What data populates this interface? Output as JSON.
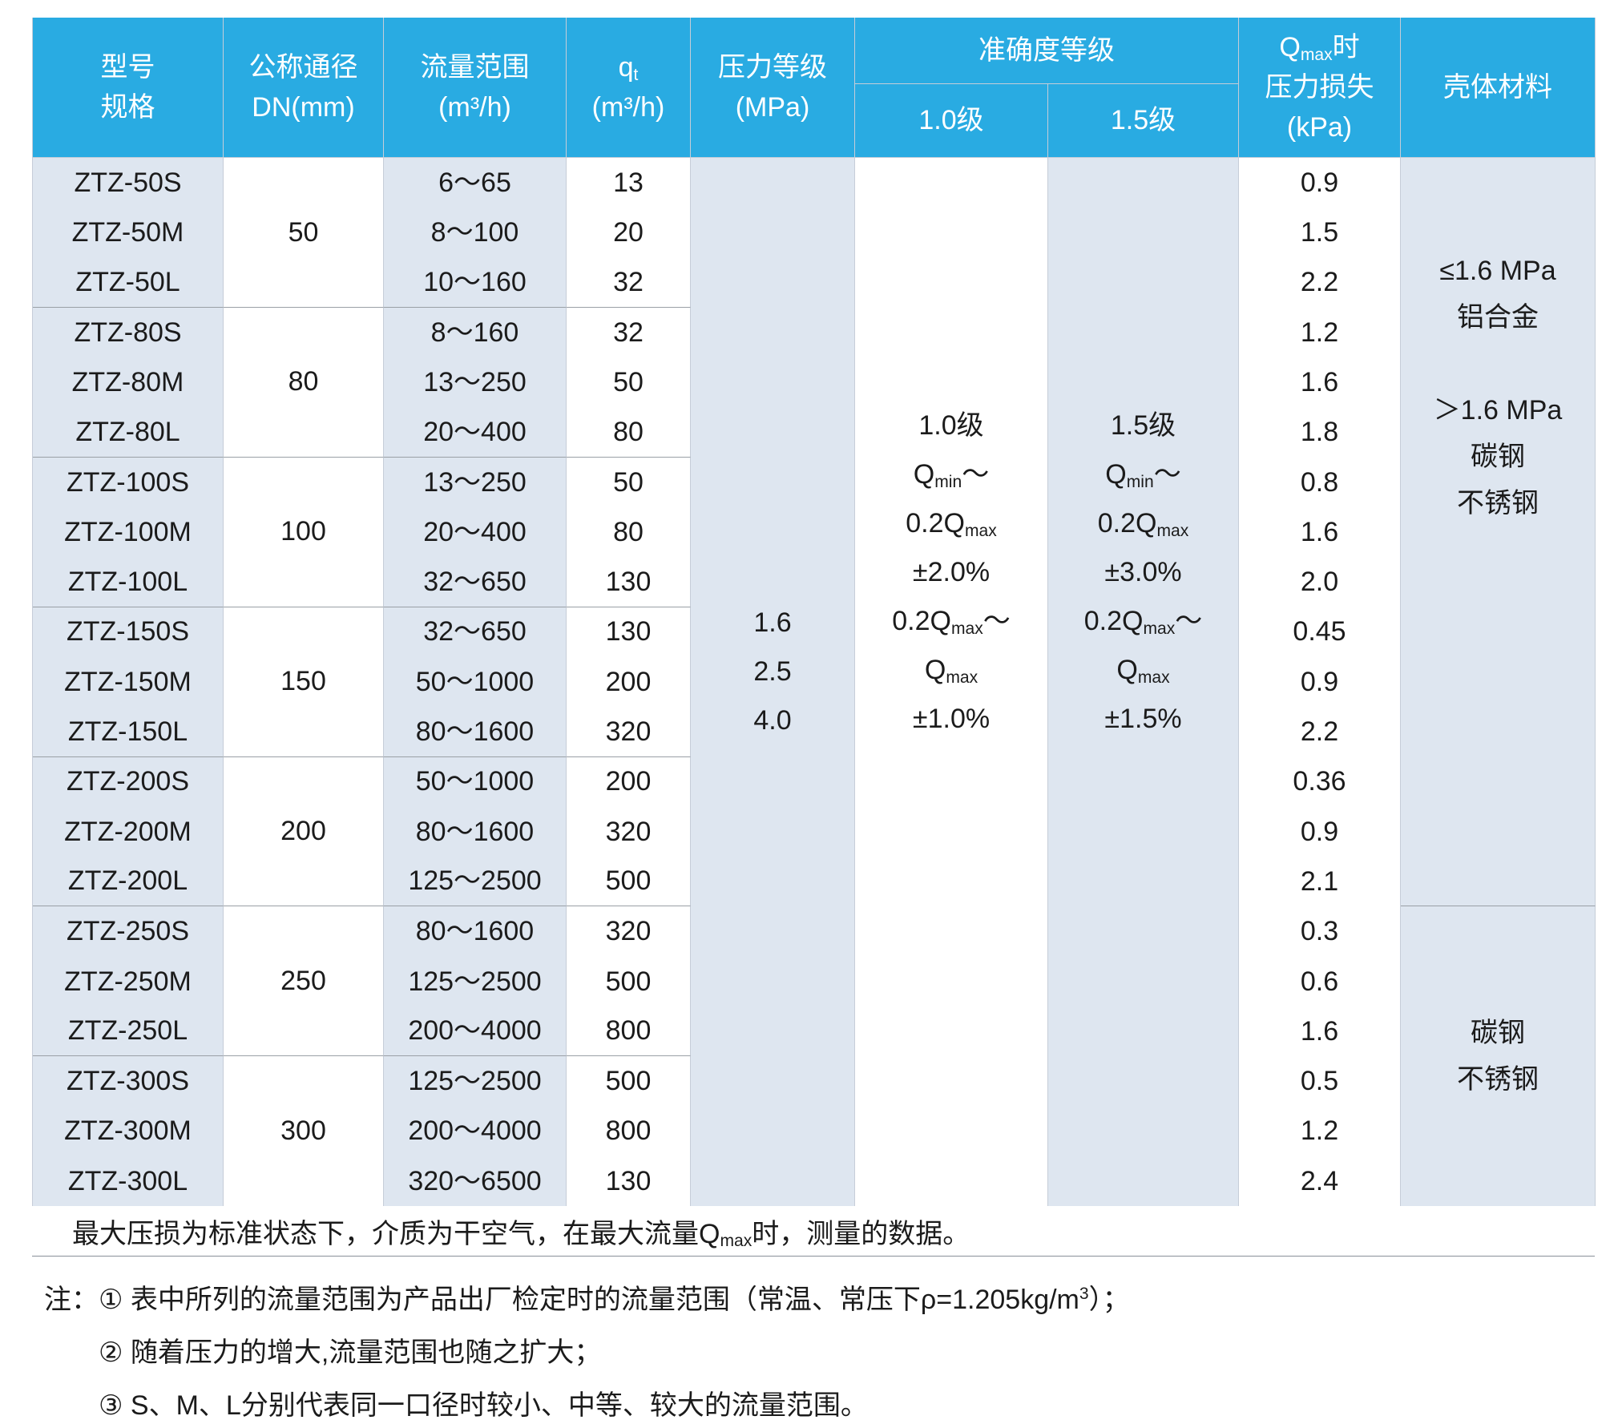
{
  "colors": {
    "header_bg": "#29abe2",
    "header_text": "#ffffff",
    "shaded_column_bg": "#dee6f0",
    "grid_line": "#c6cdd8",
    "group_divider_line": "#9aa0a6",
    "table_bottom_line": "#8a9099"
  },
  "table": {
    "header": {
      "model": [
        "型号",
        "规格"
      ],
      "dn": [
        "公称通径",
        "DN(mm)"
      ],
      "flow": [
        "流量范围",
        "(m³/h)"
      ],
      "qt": [
        "q_{t}",
        "(m³/h)"
      ],
      "pressure": [
        "压力等级",
        "(MPa)"
      ],
      "accuracy": "准确度等级",
      "acc_10": "1.0级",
      "acc_15": "1.5级",
      "loss": [
        "Q_{max}时",
        "压力损失",
        "(kPa)"
      ],
      "material": "壳体材料"
    },
    "groups": [
      {
        "dn": "50",
        "rows": [
          {
            "model": "ZTZ-50S",
            "flow": "6～65",
            "qt": "13",
            "loss": "0.9"
          },
          {
            "model": "ZTZ-50M",
            "flow": "8～100",
            "qt": "20",
            "loss": "1.5"
          },
          {
            "model": "ZTZ-50L",
            "flow": "10～160",
            "qt": "32",
            "loss": "2.2"
          }
        ]
      },
      {
        "dn": "80",
        "rows": [
          {
            "model": "ZTZ-80S",
            "flow": "8～160",
            "qt": "32",
            "loss": "1.2"
          },
          {
            "model": "ZTZ-80M",
            "flow": "13～250",
            "qt": "50",
            "loss": "1.6"
          },
          {
            "model": "ZTZ-80L",
            "flow": "20～400",
            "qt": "80",
            "loss": "1.8"
          }
        ]
      },
      {
        "dn": "100",
        "rows": [
          {
            "model": "ZTZ-100S",
            "flow": "13～250",
            "qt": "50",
            "loss": "0.8"
          },
          {
            "model": "ZTZ-100M",
            "flow": "20～400",
            "qt": "80",
            "loss": "1.6"
          },
          {
            "model": "ZTZ-100L",
            "flow": "32～650",
            "qt": "130",
            "loss": "2.0"
          }
        ]
      },
      {
        "dn": "150",
        "rows": [
          {
            "model": "ZTZ-150S",
            "flow": "32～650",
            "qt": "130",
            "loss": "0.45"
          },
          {
            "model": "ZTZ-150M",
            "flow": "50～1000",
            "qt": "200",
            "loss": "0.9"
          },
          {
            "model": "ZTZ-150L",
            "flow": "80～1600",
            "qt": "320",
            "loss": "2.2"
          }
        ]
      },
      {
        "dn": "200",
        "rows": [
          {
            "model": "ZTZ-200S",
            "flow": "50～1000",
            "qt": "200",
            "loss": "0.36"
          },
          {
            "model": "ZTZ-200M",
            "flow": "80～1600",
            "qt": "320",
            "loss": "0.9"
          },
          {
            "model": "ZTZ-200L",
            "flow": "125～2500",
            "qt": "500",
            "loss": "2.1"
          }
        ]
      },
      {
        "dn": "250",
        "rows": [
          {
            "model": "ZTZ-250S",
            "flow": "80～1600",
            "qt": "320",
            "loss": "0.3"
          },
          {
            "model": "ZTZ-250M",
            "flow": "125～2500",
            "qt": "500",
            "loss": "0.6"
          },
          {
            "model": "ZTZ-250L",
            "flow": "200～4000",
            "qt": "800",
            "loss": "1.6"
          }
        ]
      },
      {
        "dn": "300",
        "rows": [
          {
            "model": "ZTZ-300S",
            "flow": "125～2500",
            "qt": "500",
            "loss": "0.5"
          },
          {
            "model": "ZTZ-300M",
            "flow": "200～4000",
            "qt": "800",
            "loss": "1.2"
          },
          {
            "model": "ZTZ-300L",
            "flow": "320～6500",
            "qt": "130",
            "loss": "2.4"
          }
        ]
      }
    ],
    "pressure_values": [
      "1.6",
      "2.5",
      "4.0"
    ],
    "accuracy_10_lines": [
      "1.0级",
      "Q_{min}～",
      "0.2Q_{max}",
      "±2.0%",
      "0.2Q_{max}～",
      "Q_{max}",
      "±1.0%"
    ],
    "accuracy_15_lines": [
      "1.5级",
      "Q_{min}～",
      "0.2Q_{max}",
      "±3.0%",
      "0.2Q_{max}～",
      "Q_{max}",
      "±1.5%"
    ],
    "material_upper_lines": [
      "≤1.6 MPa",
      "铝合金",
      "",
      "＞1.6 MPa",
      "碳钢",
      "不锈钢"
    ],
    "material_lower_lines": [
      "碳钢",
      "不锈钢"
    ],
    "footnote": "最大压损为标准状态下，介质为干空气，在最大流量Q_{max}时，测量的数据。"
  },
  "notes": {
    "label": "注：",
    "items": [
      "① 表中所列的流量范围为产品出厂检定时的流量范围（常温、常压下ρ=1.205kg/m^{3}）；",
      "② 随着压力的增大,流量范围也随之扩大；",
      "③ S、M、L分别代表同一口径时较小、中等、较大的流量范围。"
    ]
  }
}
